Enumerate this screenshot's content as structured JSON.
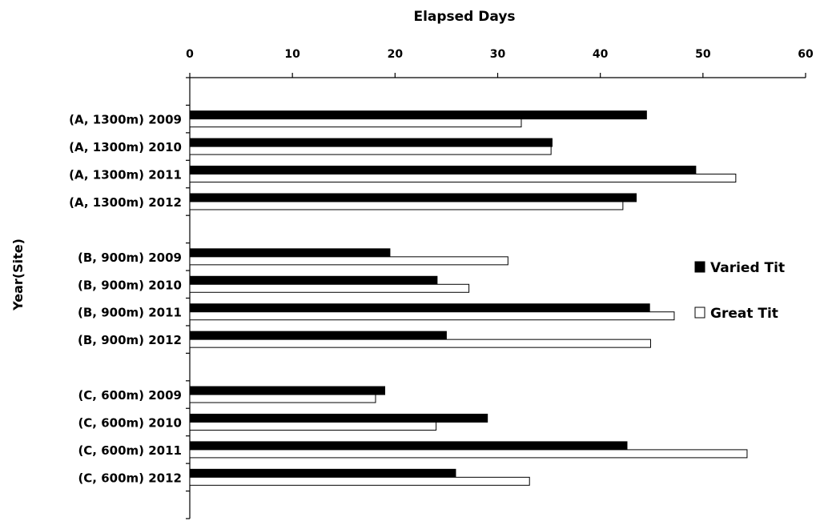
{
  "chart_data": {
    "type": "bar",
    "orientation": "horizontal",
    "title": "Elapsed Days",
    "xlabel": "Elapsed Days",
    "ylabel": "Year(Site)",
    "xlim": [
      0,
      60
    ],
    "xticks": [
      "0",
      "10",
      "20",
      "30",
      "40",
      "50",
      "60"
    ],
    "x_axis_position": "top",
    "grid": false,
    "legend_position": "right",
    "groups": [
      {
        "categories": [
          "(A, 1300m) 2009",
          "(A, 1300m) 2010",
          "(A, 1300m) 2011",
          "(A, 1300m) 2012"
        ]
      },
      {
        "categories": [
          "(B, 900m) 2009",
          "(B, 900m) 2010",
          "(B, 900m) 2011",
          "(B, 900m) 2012"
        ]
      },
      {
        "categories": [
          "(C, 600m) 2009",
          "(C, 600m) 2010",
          "(C, 600m) 2011",
          "(C, 600m) 2012"
        ]
      }
    ],
    "series": [
      {
        "name": "Varied Tit",
        "color": "#000000",
        "values": [
          44.5,
          35.3,
          49.3,
          43.5,
          19.5,
          24.1,
          44.8,
          25.0,
          19.0,
          29.0,
          42.6,
          25.9
        ]
      },
      {
        "name": "Great Tit",
        "color": "#ffffff",
        "values": [
          32.3,
          35.2,
          53.2,
          42.2,
          31.0,
          27.2,
          47.2,
          44.9,
          18.1,
          24.0,
          54.3,
          33.1
        ]
      }
    ]
  }
}
